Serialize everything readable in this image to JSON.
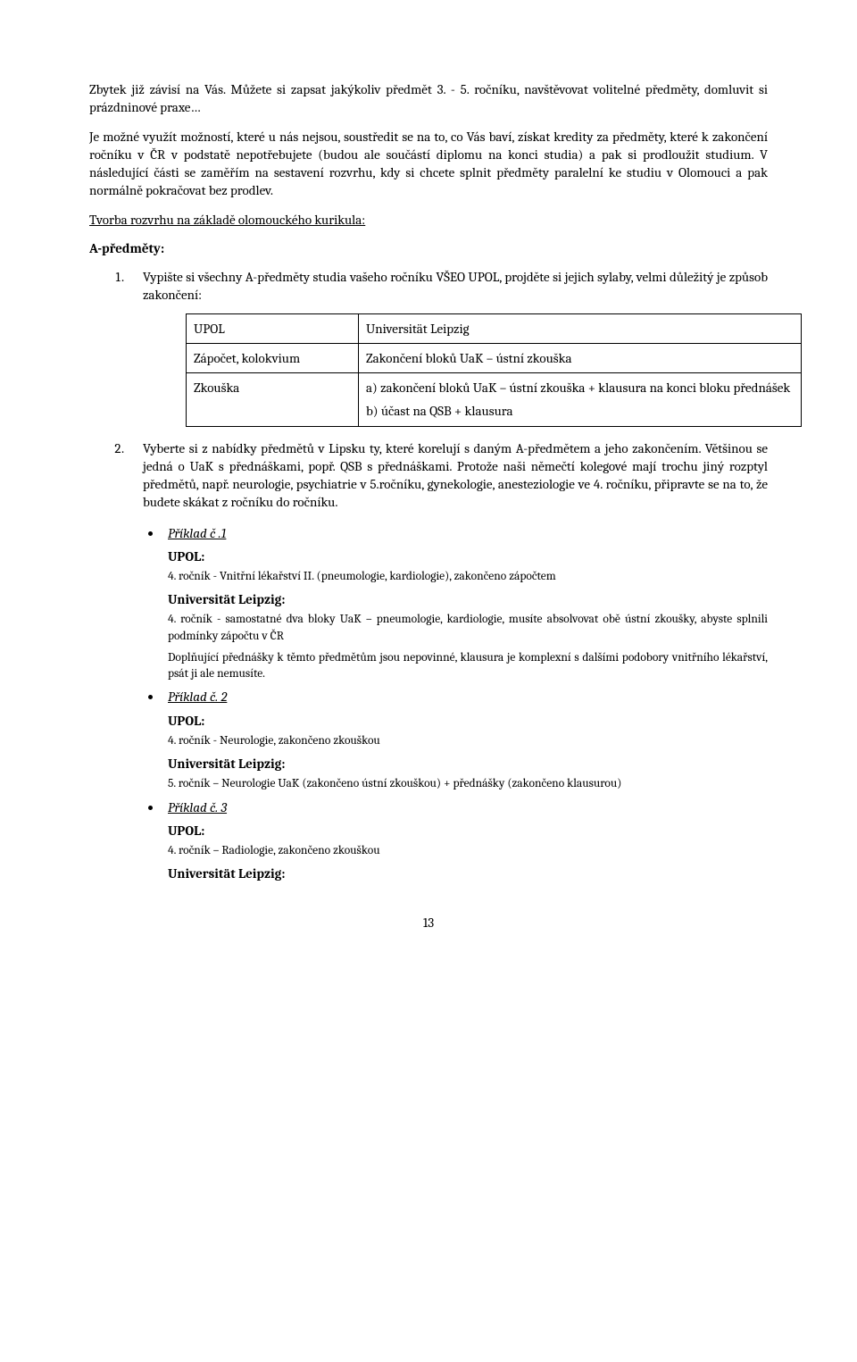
{
  "para1": "Zbytek již závisí na Vás. Můžete si zapsat jakýkoliv předmět 3. - 5. ročníku, navštěvovat volitelné předměty, domluvit si prázdninové praxe…",
  "para2": "Je možné využít možností, které u nás nejsou, soustředit se na to, co Vás baví, získat kredity za předměty, které k zakončení ročníku v ČR v podstatě nepotřebujete (budou ale součástí diplomu na konci studia) a pak si prodloužit studium. V následující části se zaměřím na sestavení rozvrhu, kdy si chcete splnit předměty paralelní ke studiu v Olomouci a pak normálně pokračovat bez prodlev.",
  "heading_tvorba": "Tvorba rozvrhu na základě olomouckého kurikula:",
  "heading_a": "A-předměty:",
  "list1": "Vypište si všechny A-předměty studia vašeho ročníku VŠEO UPOL, projděte si jejich sylaby, velmi důležitý je způsob zakončení:",
  "table": {
    "r1c1": "UPOL",
    "r1c2": "Universität Leipzig",
    "r2c1": "Zápočet, kolokvium",
    "r2c2": "Zakončení bloků UaK – ústní zkouška",
    "r3c1": "Zkouška",
    "r3c2a": "a) zakončení bloků UaK – ústní zkouška + klausura na konci bloku přednášek",
    "r3c2b": "b) účast na QSB + klausura"
  },
  "list2": "Vyberte si z nabídky předmětů v Lipsku ty, které korelují s daným A-předmětem a jeho zakončením. Většinou se jedná o UaK s přednáškami, popř. QSB s přednáškami. Protože naši němečtí kolegové mají trochu jiný rozptyl předmětů, např. neurologie, psychiatrie v 5.ročníku, gynekologie, anesteziologie ve 4. ročníku, připravte se na to, že budete skákat z ročníku do ročníku.",
  "ex1": {
    "title": "Příklad č .1",
    "upol_label": "UPOL:",
    "upol_text": "4. ročník - Vnitřní lékařství II. (pneumologie, kardiologie), zakončeno zápočtem",
    "ul_label": "Universität Leipzig:",
    "ul_text1": "4. ročník - samostatné dva bloky UaK – pneumologie, kardiologie, musíte absolvovat obě ústní zkoušky, abyste splnili podmínky zápočtu v ČR",
    "ul_text2": "Doplňující přednášky k těmto předmětům jsou nepovinné, klausura je komplexní s dalšími podobory vnitřního lékařství, psát ji ale nemusíte."
  },
  "ex2": {
    "title": "Příklad č. 2",
    "upol_label": "UPOL:",
    "upol_text": "4. ročník - Neurologie, zakončeno zkouškou",
    "ul_label": "Universität Leipzig:",
    "ul_text": "5. ročník – Neurologie UaK (zakončeno ústní zkouškou) + přednášky (zakončeno klausurou)"
  },
  "ex3": {
    "title": "Příklad č. 3",
    "upol_label": "UPOL:",
    "upol_text": "4. ročník – Radiologie, zakončeno zkouškou",
    "ul_label": "Universität Leipzig:"
  },
  "pagenum": "13"
}
